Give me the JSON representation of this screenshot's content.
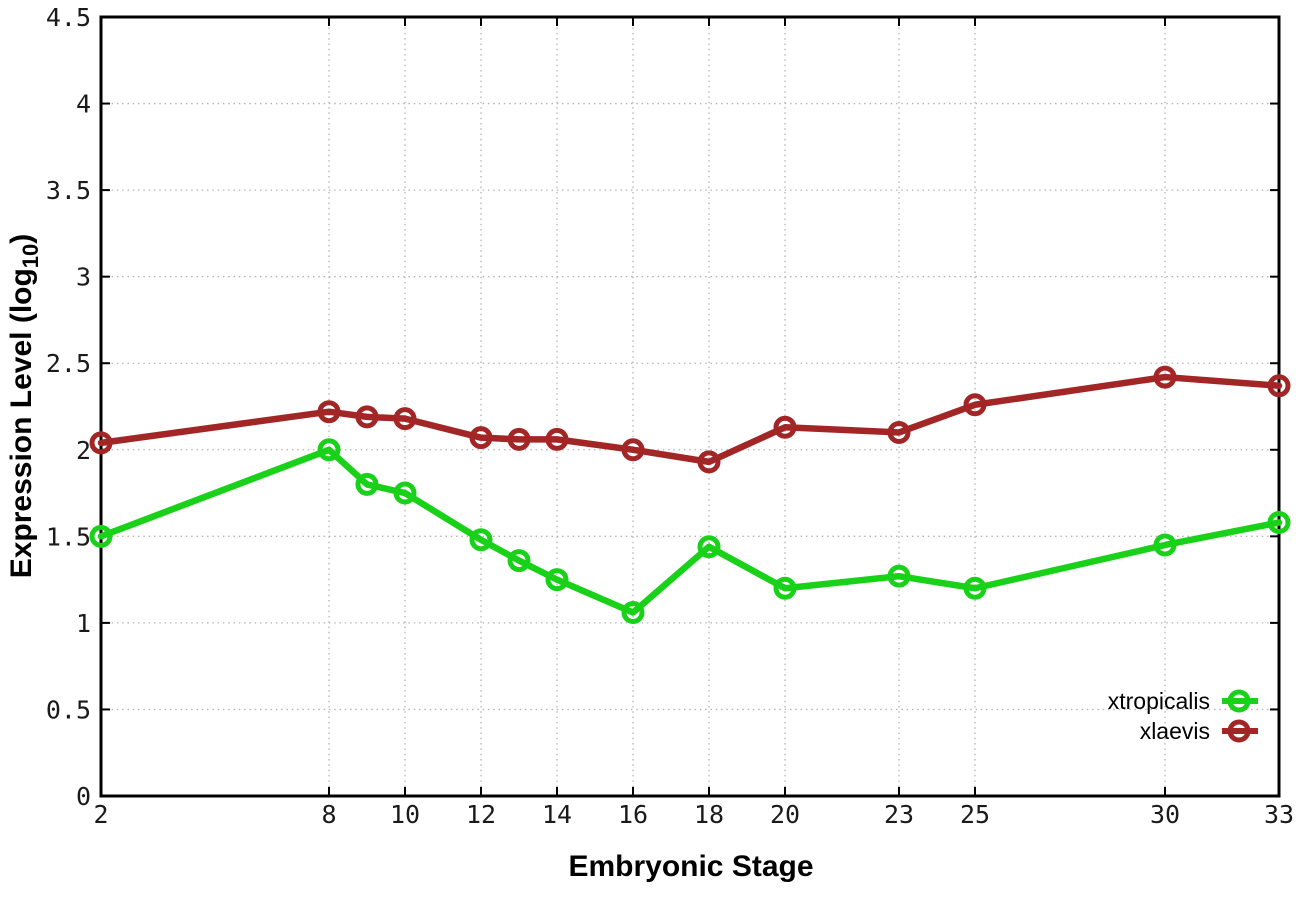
{
  "figure": {
    "background": "#ffffff",
    "border_color": "#000000",
    "grid_color": "#b4b4b4",
    "tick_text_color": "#1a1a1a"
  },
  "chart_data": {
    "type": "line",
    "title": "",
    "xlabel": "Embryonic Stage",
    "ylabel": "Expression Level (log10)",
    "ylabel_parts": {
      "pre": "Expression Level (log",
      "sub": "10",
      "post": ")"
    },
    "xlim": [
      2,
      33
    ],
    "ylim": [
      0,
      4.5
    ],
    "grid": true,
    "legend_position": "bottom-right",
    "x": [
      2,
      8,
      9,
      10,
      12,
      13,
      14,
      16,
      18,
      20,
      23,
      25,
      30,
      33
    ],
    "xticks": [
      2,
      8,
      10,
      12,
      14,
      16,
      18,
      20,
      23,
      25,
      30,
      33
    ],
    "xtick_labels": [
      "2",
      "8",
      "10",
      "12",
      "14",
      "16",
      "18",
      "20",
      "23",
      "25",
      "30",
      "33"
    ],
    "yticks": [
      0,
      0.5,
      1,
      1.5,
      2,
      2.5,
      3,
      3.5,
      4,
      4.5
    ],
    "ytick_labels": [
      "0",
      "0.5",
      "1",
      "1.5",
      "2",
      "2.5",
      "3",
      "3.5",
      "4",
      "4.5"
    ],
    "series": [
      {
        "name": "xtropicalis",
        "color": "#18d118",
        "marker": "open-circle",
        "values": [
          1.5,
          2.0,
          1.8,
          1.75,
          1.48,
          1.36,
          1.25,
          1.06,
          1.44,
          1.2,
          1.27,
          1.2,
          1.45,
          1.58
        ]
      },
      {
        "name": "xlaevis",
        "color": "#a32626",
        "marker": "open-circle",
        "values": [
          2.04,
          2.22,
          2.19,
          2.18,
          2.07,
          2.06,
          2.06,
          2.0,
          1.93,
          2.13,
          2.1,
          2.26,
          2.42,
          2.37
        ]
      }
    ]
  }
}
